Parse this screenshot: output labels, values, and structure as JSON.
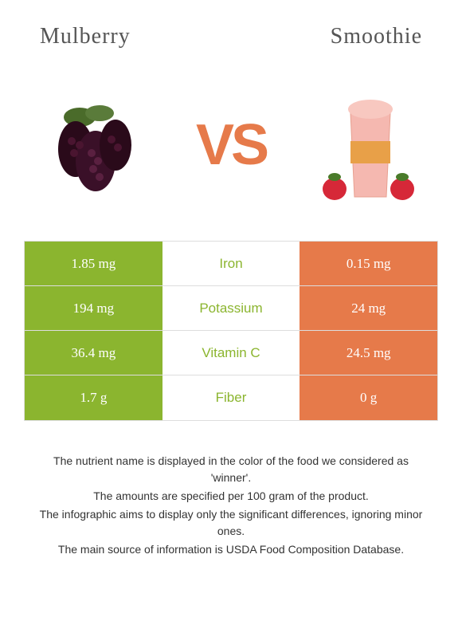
{
  "titles": {
    "left": "Mulberry",
    "right": "Smoothie"
  },
  "vs_text": "VS",
  "colors": {
    "left_bg": "#8bb52f",
    "right_bg": "#e67a4a",
    "mid_text_left": "#8bb52f",
    "mid_text_right": "#e67a4a",
    "vs_color": "#e67a4a"
  },
  "rows": [
    {
      "left": "1.85 mg",
      "mid": "Iron",
      "right": "0.15 mg",
      "winner": "left"
    },
    {
      "left": "194 mg",
      "mid": "Potassium",
      "right": "24 mg",
      "winner": "left"
    },
    {
      "left": "36.4 mg",
      "mid": "Vitamin C",
      "right": "24.5 mg",
      "winner": "left"
    },
    {
      "left": "1.7 g",
      "mid": "Fiber",
      "right": "0 g",
      "winner": "left"
    }
  ],
  "footer": [
    "The nutrient name is displayed in the color of the food we considered as 'winner'.",
    "The amounts are specified per 100 gram of the product.",
    "The infographic aims to display only the significant differences, ignoring minor ones.",
    "The main source of information is USDA Food Composition Database."
  ]
}
